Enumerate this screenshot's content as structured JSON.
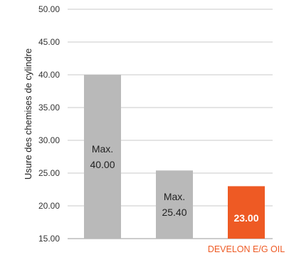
{
  "chart_data": {
    "type": "bar",
    "ylabel": "Usure des chemises de cylindre",
    "ylim": [
      15,
      50
    ],
    "yticks": [
      15,
      20,
      25,
      30,
      35,
      40,
      45,
      50
    ],
    "ytick_labels": [
      "15.00",
      "20.00",
      "25.00",
      "30.00",
      "35.00",
      "40.00",
      "45.00",
      "50.00"
    ],
    "grid": true,
    "categories": [
      "",
      "",
      "DEVELON E/G OIL"
    ],
    "values": [
      40.0,
      25.4,
      23.0
    ],
    "data_labels": [
      [
        "Max.",
        "40.00"
      ],
      [
        "Max.",
        "25.40"
      ],
      [
        "23.00"
      ]
    ],
    "colors": {
      "bar_default": "#b9b9b9",
      "bar_highlight": "#ee5a24",
      "label_default": "#222222",
      "label_highlight": "#ffffff",
      "category_highlight": "#ee5a24",
      "grid": "#c8c8c8",
      "axis": "#999999"
    },
    "highlight_index": 2
  }
}
